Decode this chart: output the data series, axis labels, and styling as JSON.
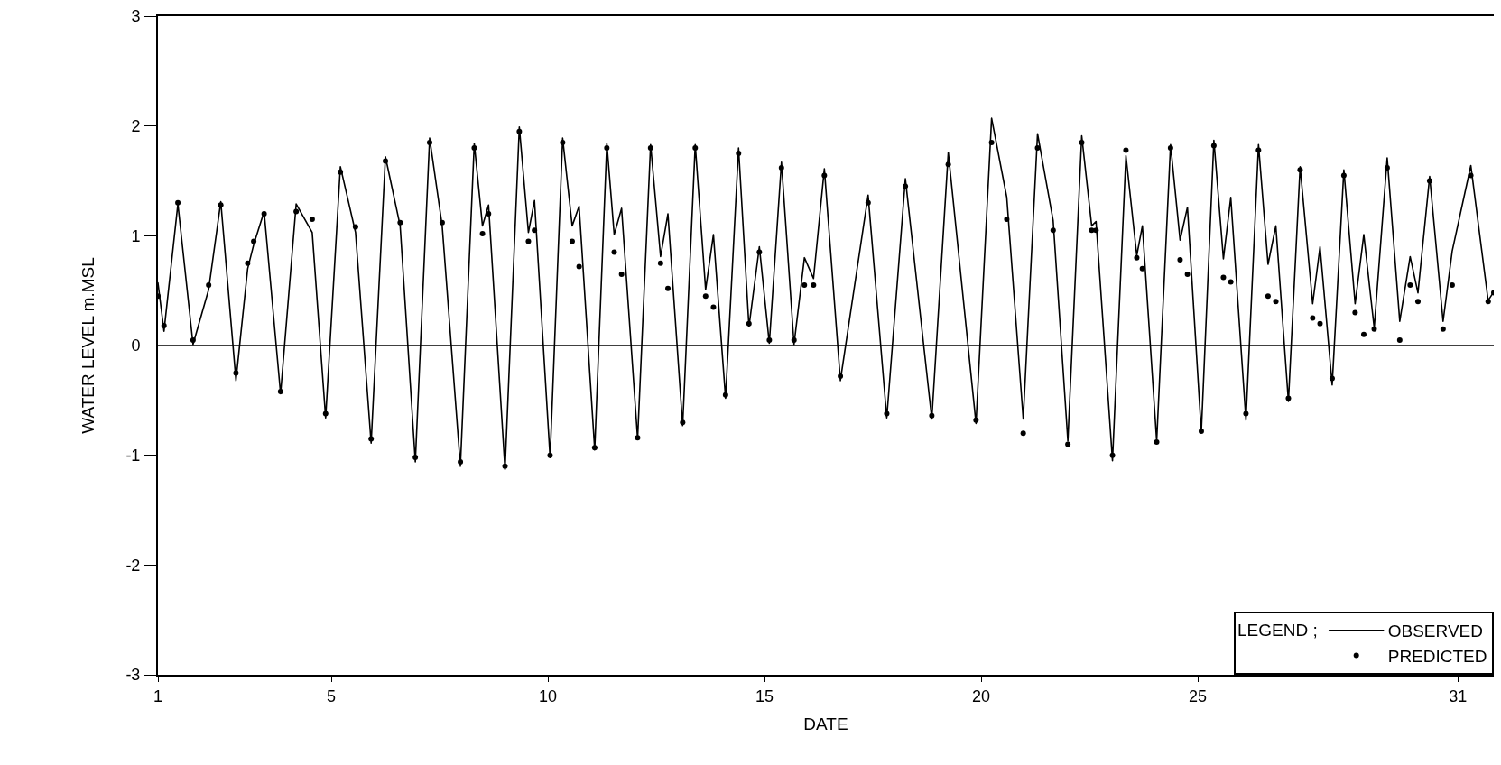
{
  "chart_data": {
    "type": "line",
    "xlabel": "DATE",
    "ylabel": "WATER LEVEL m.MSL",
    "legend_title": "LEGEND ;",
    "xlim": [
      1,
      31.83
    ],
    "xticks": [
      1,
      5,
      10,
      15,
      20,
      25,
      31
    ],
    "ylim": [
      -3,
      3
    ],
    "yticks": [
      -3,
      -2,
      -1,
      0,
      1,
      2,
      3
    ],
    "legend": "bottom right",
    "line_style": "solid",
    "ref_lines": [
      {
        "axis": "y",
        "value": 0,
        "color": "#000000"
      }
    ],
    "series": [
      {
        "name": "OBSERVED",
        "color": "#000000",
        "x": [
          1.0,
          1.14,
          1.46,
          1.81,
          2.17,
          2.45,
          2.8,
          3.07,
          3.21,
          3.45,
          3.83,
          4.19,
          4.56,
          4.87,
          5.21,
          5.56,
          5.92,
          6.25,
          6.59,
          6.94,
          7.27,
          7.56,
          7.98,
          8.3,
          8.49,
          8.63,
          9.01,
          9.34,
          9.55,
          9.69,
          10.05,
          10.34,
          10.56,
          10.72,
          11.08,
          11.36,
          11.53,
          11.7,
          12.07,
          12.37,
          12.6,
          12.77,
          13.11,
          13.4,
          13.64,
          13.82,
          14.1,
          14.4,
          14.64,
          14.88,
          15.11,
          15.39,
          15.68,
          15.92,
          16.13,
          16.38,
          16.75,
          17.39,
          17.82,
          18.25,
          18.86,
          19.24,
          19.88,
          20.24,
          20.59,
          20.97,
          21.3,
          21.66,
          22.0,
          22.32,
          22.55,
          22.65,
          23.03,
          23.34,
          23.59,
          23.72,
          24.05,
          24.37,
          24.59,
          24.76,
          25.08,
          25.37,
          25.59,
          25.76,
          26.11,
          26.4,
          26.62,
          26.8,
          27.09,
          27.36,
          27.65,
          27.82,
          28.1,
          28.37,
          28.63,
          28.83,
          29.07,
          29.37,
          29.66,
          29.9,
          30.08,
          30.35,
          30.66,
          30.87,
          31.3,
          31.7,
          31.83
        ],
        "values": [
          0.57,
          0.13,
          1.29,
          0.01,
          0.51,
          1.31,
          -0.32,
          0.7,
          0.92,
          1.22,
          -0.44,
          1.29,
          1.03,
          -0.66,
          1.63,
          1.03,
          -0.89,
          1.72,
          1.09,
          -1.06,
          1.89,
          1.09,
          -1.1,
          1.84,
          1.09,
          1.28,
          -1.13,
          1.99,
          1.03,
          1.32,
          -1.02,
          1.89,
          1.09,
          1.27,
          -0.95,
          1.84,
          1.01,
          1.25,
          -0.85,
          1.83,
          0.81,
          1.2,
          -0.73,
          1.83,
          0.51,
          1.01,
          -0.48,
          1.8,
          0.17,
          0.9,
          0.02,
          1.67,
          0.01,
          0.8,
          0.61,
          1.61,
          -0.32,
          1.37,
          -0.66,
          1.52,
          -0.67,
          1.76,
          -0.71,
          2.07,
          1.35,
          -0.67,
          1.93,
          1.14,
          -0.87,
          1.91,
          1.09,
          1.13,
          -1.05,
          1.73,
          0.82,
          1.09,
          -0.87,
          1.83,
          0.96,
          1.26,
          -0.79,
          1.87,
          0.79,
          1.35,
          -0.68,
          1.83,
          0.74,
          1.09,
          -0.51,
          1.63,
          0.38,
          0.9,
          -0.36,
          1.6,
          0.38,
          1.01,
          0.16,
          1.71,
          0.22,
          0.81,
          0.48,
          1.54,
          0.22,
          0.86,
          1.64,
          0.41,
          0.49
        ]
      },
      {
        "name": "PREDICTED",
        "type": "scatter",
        "marker": "circle",
        "color": "#000000",
        "x": [
          1.0,
          1.14,
          1.46,
          1.81,
          2.17,
          2.45,
          2.8,
          3.07,
          3.21,
          3.45,
          3.83,
          4.19,
          4.56,
          4.87,
          5.21,
          5.56,
          5.92,
          6.25,
          6.59,
          6.94,
          7.27,
          7.56,
          7.98,
          8.3,
          8.49,
          8.63,
          9.01,
          9.34,
          9.55,
          9.69,
          10.05,
          10.34,
          10.56,
          10.72,
          11.08,
          11.36,
          11.53,
          11.7,
          12.07,
          12.37,
          12.6,
          12.77,
          13.11,
          13.4,
          13.64,
          13.82,
          14.1,
          14.4,
          14.64,
          14.88,
          15.11,
          15.39,
          15.68,
          15.92,
          16.13,
          16.38,
          16.75,
          17.39,
          17.82,
          18.25,
          18.86,
          19.24,
          19.88,
          20.24,
          20.59,
          20.97,
          21.3,
          21.66,
          22.0,
          22.32,
          22.55,
          22.65,
          23.03,
          23.34,
          23.59,
          23.72,
          24.05,
          24.37,
          24.59,
          24.76,
          25.08,
          25.37,
          25.59,
          25.76,
          26.11,
          26.4,
          26.62,
          26.8,
          27.09,
          27.36,
          27.65,
          27.82,
          28.1,
          28.37,
          28.63,
          28.83,
          29.07,
          29.37,
          29.66,
          29.9,
          30.08,
          30.35,
          30.66,
          30.87,
          31.3,
          31.7,
          31.83
        ],
        "values": [
          0.45,
          0.18,
          1.3,
          0.05,
          0.55,
          1.28,
          -0.25,
          0.75,
          0.95,
          1.2,
          -0.42,
          1.22,
          1.15,
          -0.62,
          1.58,
          1.08,
          -0.85,
          1.68,
          1.12,
          -1.02,
          1.85,
          1.12,
          -1.06,
          1.8,
          1.02,
          1.2,
          -1.1,
          1.95,
          0.95,
          1.05,
          -1.0,
          1.85,
          0.95,
          0.72,
          -0.93,
          1.8,
          0.85,
          0.65,
          -0.84,
          1.8,
          0.75,
          0.52,
          -0.7,
          1.8,
          0.45,
          0.35,
          -0.45,
          1.75,
          0.2,
          0.85,
          0.05,
          1.62,
          0.05,
          0.55,
          0.55,
          1.55,
          -0.28,
          1.3,
          -0.62,
          1.45,
          -0.64,
          1.65,
          -0.68,
          1.85,
          1.15,
          -0.8,
          1.8,
          1.05,
          -0.9,
          1.85,
          1.05,
          1.05,
          -1.0,
          1.78,
          0.8,
          0.7,
          -0.88,
          1.8,
          0.78,
          0.65,
          -0.78,
          1.82,
          0.62,
          0.58,
          -0.62,
          1.78,
          0.45,
          0.4,
          -0.48,
          1.6,
          0.25,
          0.2,
          -0.3,
          1.55,
          0.3,
          0.1,
          0.15,
          1.62,
          0.05,
          0.55,
          0.4,
          1.5,
          0.15,
          0.55,
          1.55,
          0.4,
          0.48
        ]
      }
    ]
  }
}
